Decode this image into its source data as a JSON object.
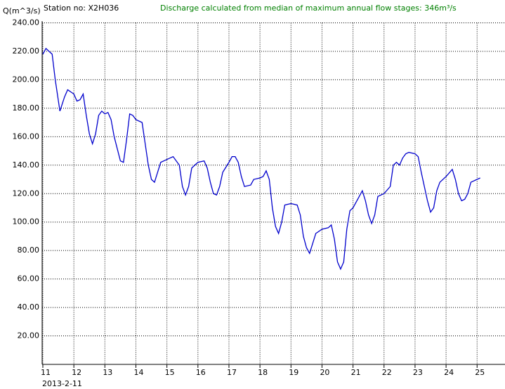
{
  "chart_data": {
    "type": "line",
    "title": "Station no: X2H036",
    "subtitle": "Discharge calculated from median of maximum annual flow stages: 346m³/s",
    "y_label": "Q(m^3/s)",
    "x_note": "2013-2-11",
    "x": [
      11.0,
      11.1,
      11.2,
      11.3,
      11.4,
      11.55,
      11.7,
      11.8,
      12.0,
      12.1,
      12.2,
      12.3,
      12.4,
      12.5,
      12.6,
      12.7,
      12.8,
      12.9,
      13.0,
      13.1,
      13.2,
      13.3,
      13.5,
      13.6,
      13.7,
      13.8,
      13.9,
      14.0,
      14.2,
      14.3,
      14.4,
      14.5,
      14.6,
      14.7,
      14.8,
      15.0,
      15.2,
      15.4,
      15.5,
      15.6,
      15.7,
      15.8,
      15.9,
      16.0,
      16.2,
      16.3,
      16.4,
      16.5,
      16.6,
      16.7,
      16.8,
      17.0,
      17.1,
      17.2,
      17.3,
      17.4,
      17.5,
      17.7,
      17.8,
      18.0,
      18.1,
      18.2,
      18.3,
      18.4,
      18.5,
      18.6,
      18.7,
      18.8,
      19.0,
      19.2,
      19.3,
      19.4,
      19.5,
      19.6,
      19.7,
      19.8,
      20.0,
      20.2,
      20.3,
      20.4,
      20.5,
      20.6,
      20.7,
      20.8,
      20.9,
      21.0,
      21.2,
      21.3,
      21.4,
      21.5,
      21.6,
      21.7,
      21.8,
      22.0,
      22.2,
      22.3,
      22.4,
      22.5,
      22.6,
      22.7,
      22.8,
      23.0,
      23.1,
      23.2,
      23.4,
      23.5,
      23.6,
      23.7,
      23.8,
      24.0,
      24.2,
      24.3,
      24.4,
      24.5,
      24.6,
      24.7,
      24.8,
      25.0,
      25.1
    ],
    "series": [
      {
        "color": "#0000cc",
        "values": [
          218,
          222,
          220,
          218,
          200,
          178,
          188,
          193,
          190,
          185,
          186,
          190,
          175,
          162,
          155,
          162,
          175,
          178,
          176,
          177,
          172,
          160,
          143,
          142,
          158,
          176,
          175,
          172,
          170,
          155,
          140,
          130,
          128,
          135,
          142,
          144,
          146,
          140,
          125,
          119,
          125,
          138,
          140,
          142,
          143,
          138,
          128,
          120,
          119,
          125,
          135,
          142,
          146,
          146,
          142,
          132,
          125,
          126,
          130,
          131,
          132,
          136,
          130,
          110,
          97,
          92,
          100,
          112,
          113,
          112,
          105,
          90,
          82,
          78,
          85,
          92,
          95,
          96,
          98,
          88,
          72,
          67,
          72,
          95,
          108,
          110,
          118,
          122,
          115,
          105,
          99,
          105,
          118,
          120,
          125,
          140,
          142,
          140,
          145,
          148,
          149,
          148,
          146,
          135,
          115,
          107,
          110,
          122,
          128,
          132,
          137,
          130,
          120,
          115,
          116,
          120,
          128,
          130,
          131
        ]
      }
    ],
    "xlim": [
      11,
      25.9
    ],
    "ylim": [
      0,
      240
    ],
    "xticks": [
      11,
      12,
      13,
      14,
      15,
      16,
      17,
      18,
      19,
      20,
      21,
      22,
      23,
      24,
      25
    ],
    "yticks": [
      {
        "value": 20,
        "label": "20.00"
      },
      {
        "value": 40,
        "label": "40.00"
      },
      {
        "value": 60,
        "label": "60.00"
      },
      {
        "value": 80,
        "label": "80.00"
      },
      {
        "value": 100,
        "label": "100.00"
      },
      {
        "value": 120,
        "label": "120.00"
      },
      {
        "value": 140,
        "label": "140.00"
      },
      {
        "value": 160,
        "label": "160.00"
      },
      {
        "value": 180,
        "label": "180.00"
      },
      {
        "value": 200,
        "label": "200.00"
      },
      {
        "value": 220,
        "label": "220.00"
      },
      {
        "value": 240,
        "label": "240.00"
      }
    ],
    "grid": true
  }
}
